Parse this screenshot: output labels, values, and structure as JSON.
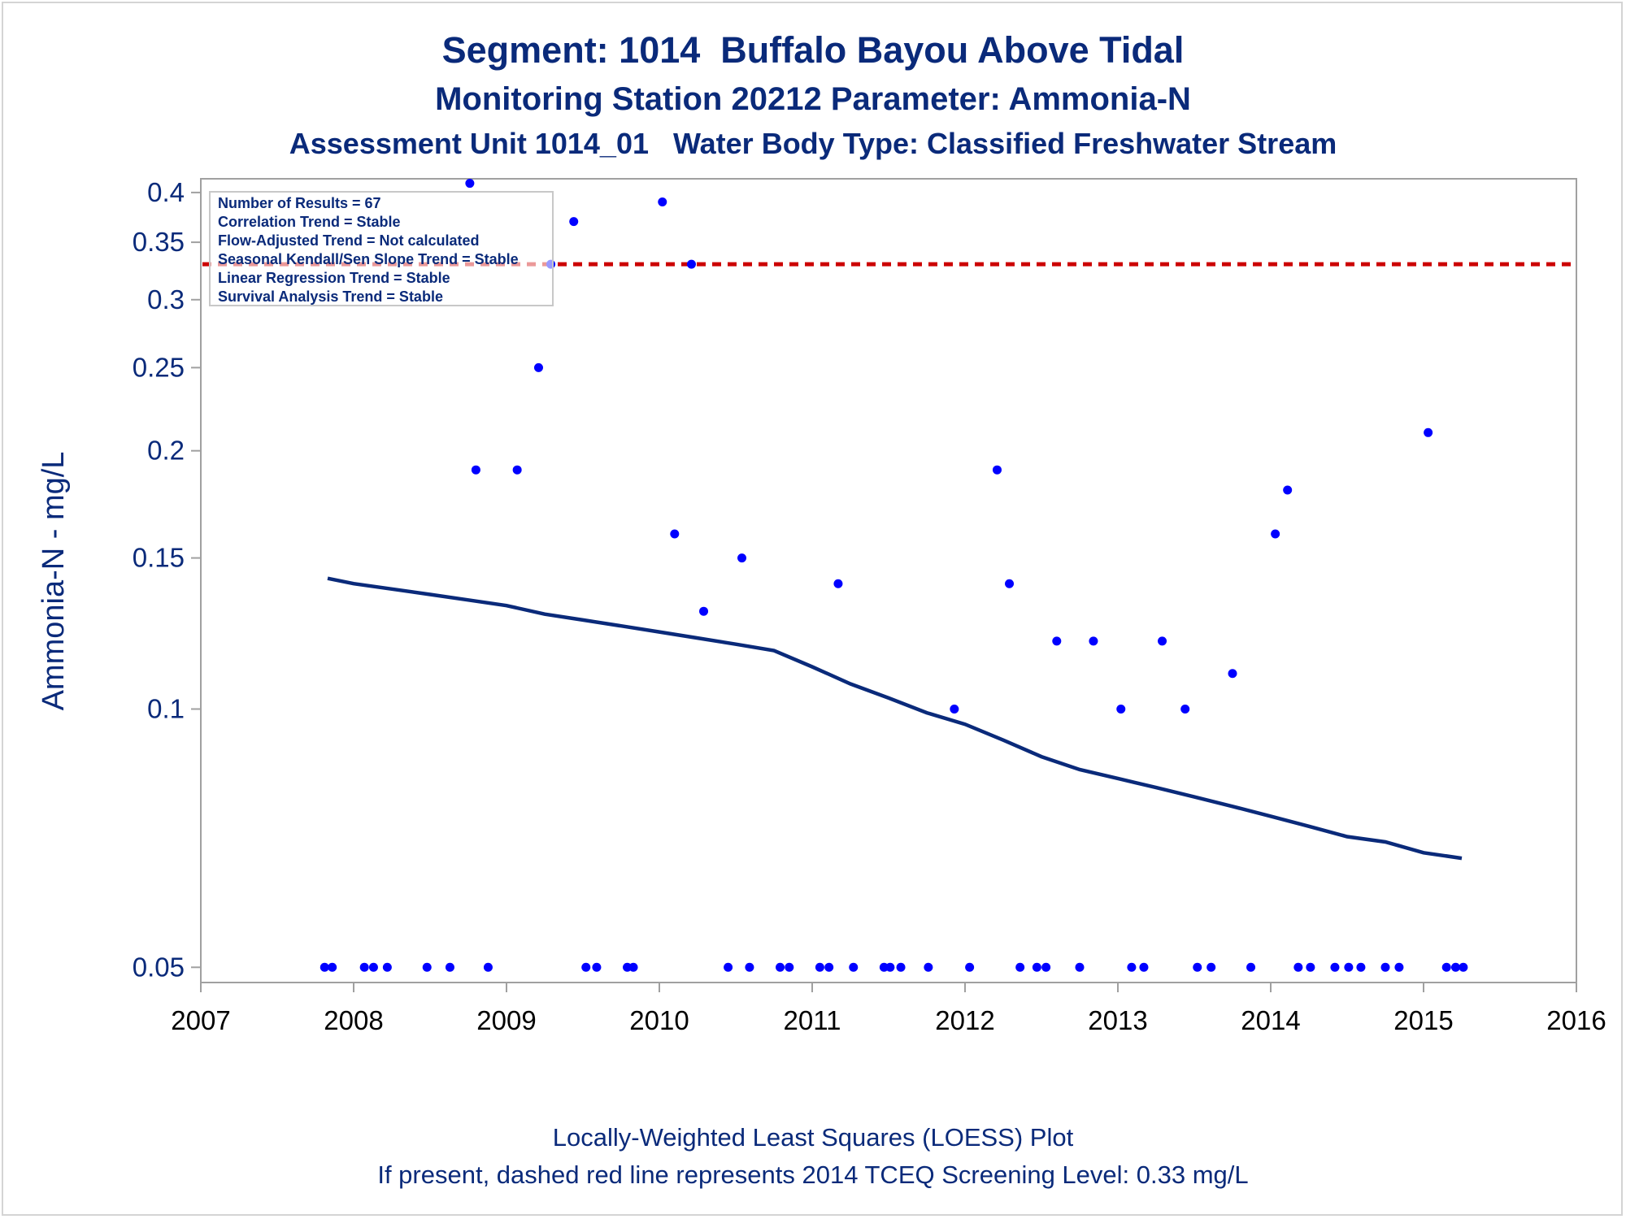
{
  "titles": {
    "line1": "Segment: 1014  Buffalo Bayou Above Tidal",
    "line2": "Monitoring Station 20212 Parameter: Ammonia-N",
    "line3": "Assessment Unit 1014_01   Water Body Type: Classified Freshwater Stream"
  },
  "footer": {
    "line1": "Locally-Weighted Least Squares (LOESS) Plot",
    "line2": "If present, dashed red line represents 2014 TCEQ Screening Level: 0.33 mg/L"
  },
  "stats_box": [
    "Number of Results = 67",
    "Correlation Trend = Stable",
    "Flow-Adjusted Trend = Not calculated",
    "Seasonal Kendall/Sen Slope Trend = Stable",
    "Linear Regression Trend = Stable",
    "Survival Analysis Trend = Stable"
  ],
  "colors": {
    "points": "#0000ff",
    "loess": "#0a2a7a",
    "screening": "#cc0000",
    "axis": "#a0a0a0"
  },
  "chart_data": {
    "type": "scatter",
    "ylabel": "Ammonia-N - mg/L",
    "y_scale": "log",
    "xlim": [
      2007,
      2016
    ],
    "ylim": [
      0.048,
      0.415
    ],
    "x_ticks": [
      2007,
      2008,
      2009,
      2010,
      2011,
      2012,
      2013,
      2014,
      2015,
      2016
    ],
    "y_ticks": [
      0.05,
      0.1,
      0.15,
      0.2,
      0.25,
      0.3,
      0.35,
      0.4
    ],
    "y_tick_labels": [
      "0.05",
      "0.1",
      "0.15",
      "0.2",
      "0.25",
      "0.3",
      "0.35",
      "0.4"
    ],
    "screening_level": 0.33,
    "points": [
      [
        2007.81,
        0.05
      ],
      [
        2007.86,
        0.05
      ],
      [
        2008.07,
        0.05
      ],
      [
        2008.13,
        0.05
      ],
      [
        2008.22,
        0.05
      ],
      [
        2008.48,
        0.05
      ],
      [
        2008.63,
        0.05
      ],
      [
        2008.88,
        0.05
      ],
      [
        2009.52,
        0.05
      ],
      [
        2009.59,
        0.05
      ],
      [
        2009.79,
        0.05
      ],
      [
        2009.83,
        0.05
      ],
      [
        2010.45,
        0.05
      ],
      [
        2010.59,
        0.05
      ],
      [
        2010.79,
        0.05
      ],
      [
        2010.85,
        0.05
      ],
      [
        2011.05,
        0.05
      ],
      [
        2011.11,
        0.05
      ],
      [
        2011.27,
        0.05
      ],
      [
        2011.47,
        0.05
      ],
      [
        2011.51,
        0.05
      ],
      [
        2011.58,
        0.05
      ],
      [
        2011.76,
        0.05
      ],
      [
        2012.03,
        0.05
      ],
      [
        2012.36,
        0.05
      ],
      [
        2012.47,
        0.05
      ],
      [
        2012.53,
        0.05
      ],
      [
        2012.75,
        0.05
      ],
      [
        2013.09,
        0.05
      ],
      [
        2013.17,
        0.05
      ],
      [
        2013.52,
        0.05
      ],
      [
        2013.61,
        0.05
      ],
      [
        2013.87,
        0.05
      ],
      [
        2014.18,
        0.05
      ],
      [
        2014.26,
        0.05
      ],
      [
        2014.42,
        0.05
      ],
      [
        2014.51,
        0.05
      ],
      [
        2014.59,
        0.05
      ],
      [
        2014.75,
        0.05
      ],
      [
        2014.84,
        0.05
      ],
      [
        2015.15,
        0.05
      ],
      [
        2015.21,
        0.05
      ],
      [
        2015.26,
        0.05
      ],
      [
        2008.76,
        0.41
      ],
      [
        2008.8,
        0.19
      ],
      [
        2009.07,
        0.19
      ],
      [
        2009.21,
        0.25
      ],
      [
        2009.29,
        0.33
      ],
      [
        2009.44,
        0.37
      ],
      [
        2010.02,
        0.39
      ],
      [
        2010.1,
        0.16
      ],
      [
        2010.21,
        0.33
      ],
      [
        2010.29,
        0.13
      ],
      [
        2010.54,
        0.15
      ],
      [
        2011.17,
        0.14
      ],
      [
        2011.93,
        0.1
      ],
      [
        2012.21,
        0.19
      ],
      [
        2012.29,
        0.14
      ],
      [
        2012.6,
        0.12
      ],
      [
        2012.84,
        0.12
      ],
      [
        2013.02,
        0.1
      ],
      [
        2013.29,
        0.12
      ],
      [
        2013.44,
        0.1
      ],
      [
        2013.75,
        0.11
      ],
      [
        2014.03,
        0.16
      ],
      [
        2014.11,
        0.18
      ],
      [
        2015.03,
        0.21
      ]
    ],
    "loess": [
      [
        2007.83,
        0.142
      ],
      [
        2008.0,
        0.14
      ],
      [
        2008.25,
        0.138
      ],
      [
        2008.5,
        0.136
      ],
      [
        2008.75,
        0.134
      ],
      [
        2009.0,
        0.132
      ],
      [
        2009.25,
        0.129
      ],
      [
        2009.5,
        0.127
      ],
      [
        2009.75,
        0.125
      ],
      [
        2010.0,
        0.123
      ],
      [
        2010.25,
        0.121
      ],
      [
        2010.5,
        0.119
      ],
      [
        2010.75,
        0.117
      ],
      [
        2011.0,
        0.112
      ],
      [
        2011.25,
        0.107
      ],
      [
        2011.5,
        0.103
      ],
      [
        2011.75,
        0.099
      ],
      [
        2012.0,
        0.096
      ],
      [
        2012.25,
        0.092
      ],
      [
        2012.5,
        0.088
      ],
      [
        2012.75,
        0.085
      ],
      [
        2013.0,
        0.083
      ],
      [
        2013.25,
        0.081
      ],
      [
        2013.5,
        0.079
      ],
      [
        2013.75,
        0.077
      ],
      [
        2014.0,
        0.075
      ],
      [
        2014.25,
        0.073
      ],
      [
        2014.5,
        0.071
      ],
      [
        2014.75,
        0.07
      ],
      [
        2015.0,
        0.068
      ],
      [
        2015.25,
        0.067
      ]
    ]
  }
}
